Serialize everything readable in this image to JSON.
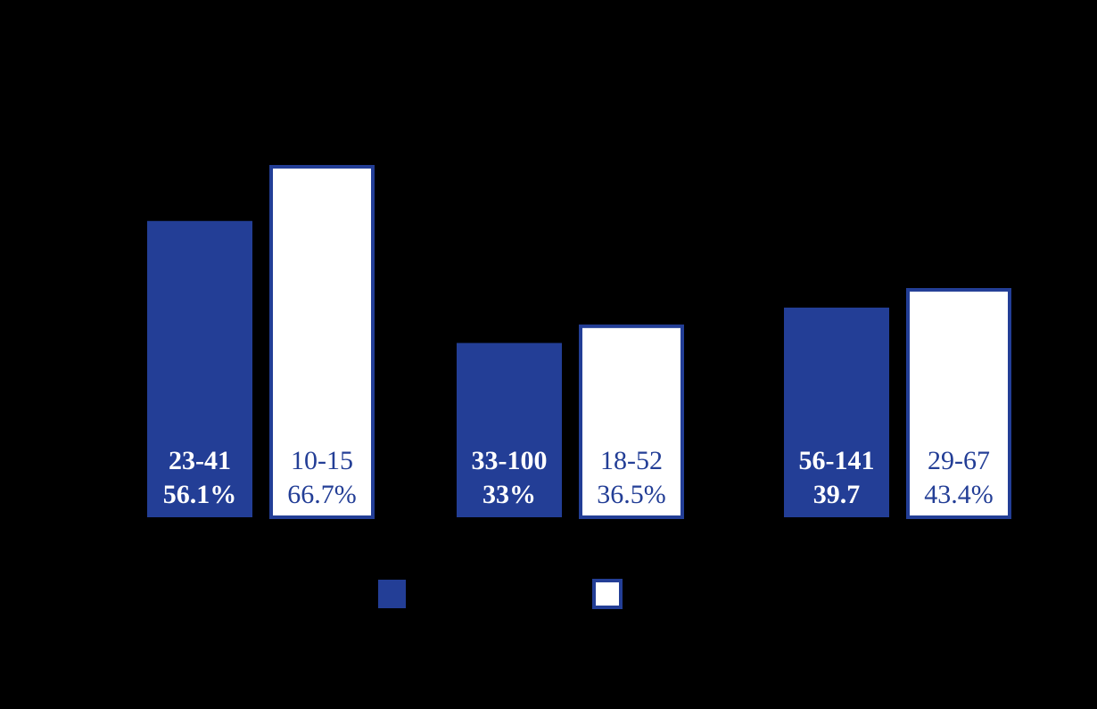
{
  "chart_data": {
    "type": "bar",
    "series": [
      {
        "color": "#233e96",
        "values": [
          56.1,
          33,
          39.7
        ],
        "value_labels": [
          "56.1%",
          "33%",
          "39.7"
        ],
        "ranges": [
          "23-41",
          "33-100",
          "56-141"
        ]
      },
      {
        "color": "#ffffff",
        "values": [
          66.7,
          36.5,
          43.4
        ],
        "value_labels": [
          "66.7%",
          "36.5%",
          "43.4%"
        ],
        "ranges": [
          "10-15",
          "18-52",
          "29-67"
        ]
      }
    ]
  }
}
